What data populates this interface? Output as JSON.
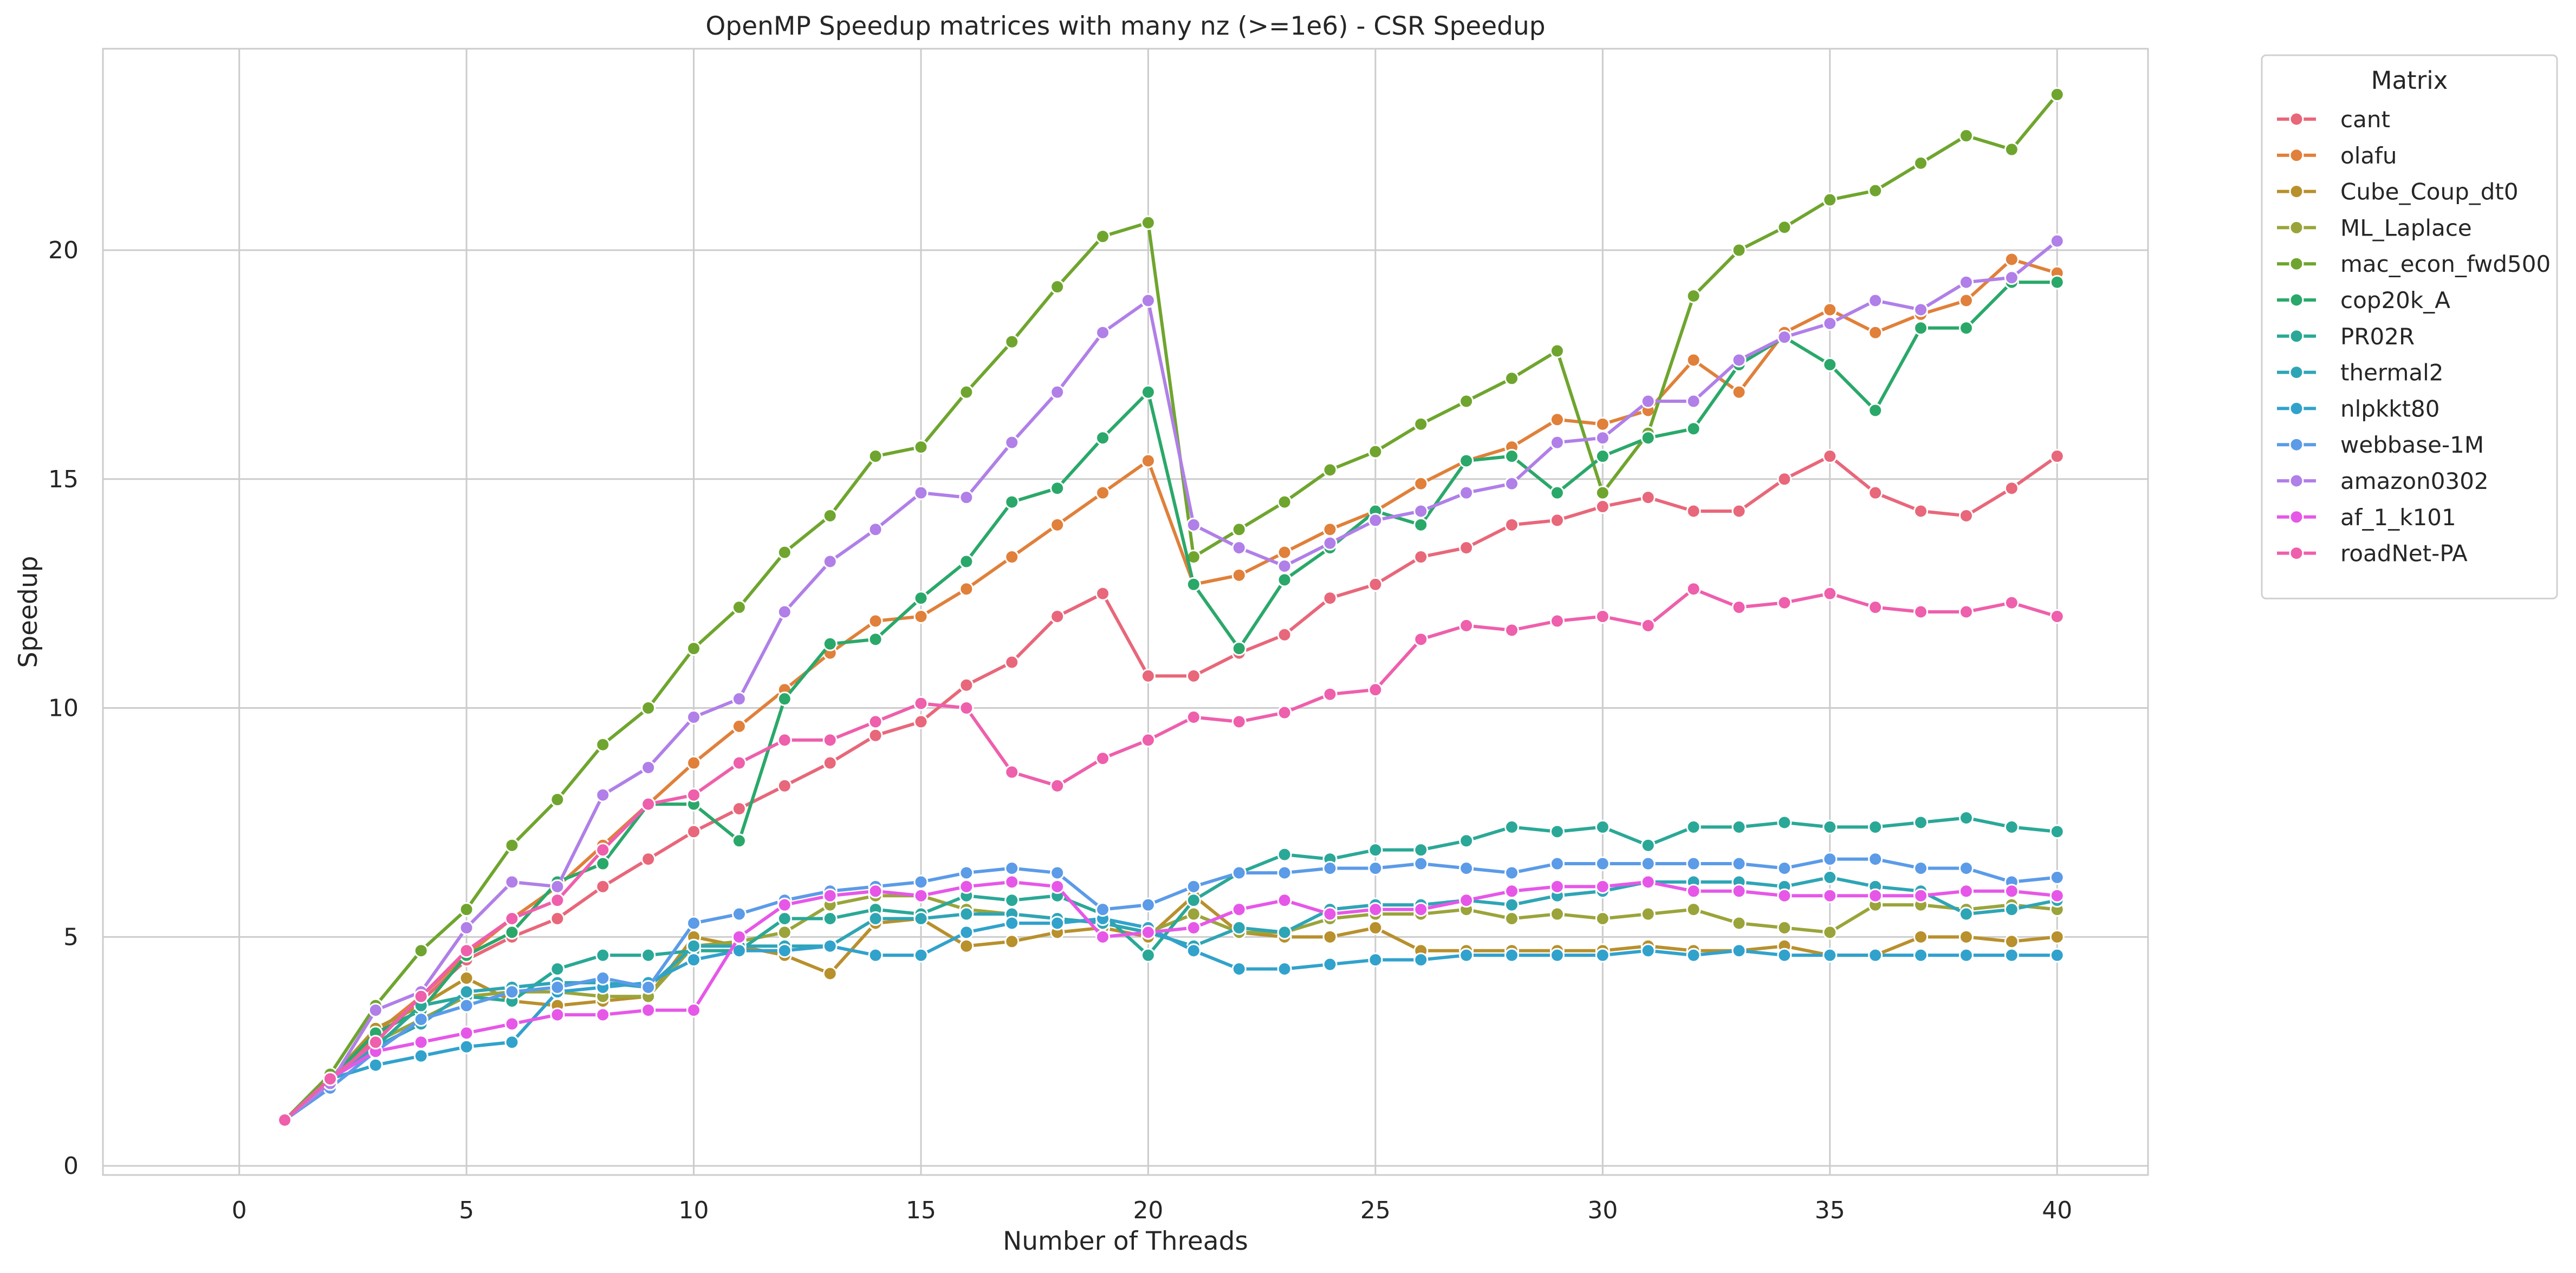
{
  "chart_data": {
    "type": "line",
    "title": "OpenMP Speedup matrices with many nz (>=1e6) - CSR Speedup",
    "xlabel": "Number of Threads",
    "ylabel": "Speedup",
    "xlim": [
      -3,
      42
    ],
    "ylim": [
      -0.2,
      24.4
    ],
    "xticks": [
      0,
      5,
      10,
      15,
      20,
      25,
      30,
      35,
      40
    ],
    "yticks": [
      0,
      5,
      10,
      15,
      20
    ],
    "grid": true,
    "legend": {
      "title": "Matrix",
      "placement": "outside-right"
    },
    "x": [
      1,
      2,
      3,
      4,
      5,
      6,
      7,
      8,
      9,
      10,
      11,
      12,
      13,
      14,
      15,
      16,
      17,
      18,
      19,
      20,
      21,
      22,
      23,
      24,
      25,
      26,
      27,
      28,
      29,
      30,
      31,
      32,
      33,
      34,
      35,
      36,
      37,
      38,
      39,
      40
    ],
    "series": [
      {
        "name": "cant",
        "color": "#e8677a",
        "values": [
          1,
          1.9,
          2.8,
          3.6,
          4.5,
          5.0,
          5.4,
          6.1,
          6.7,
          7.3,
          7.8,
          8.3,
          8.8,
          9.4,
          9.7,
          10.5,
          11.0,
          12.0,
          12.5,
          10.7,
          10.7,
          11.2,
          11.6,
          12.4,
          12.7,
          13.3,
          13.5,
          14.0,
          14.1,
          14.4,
          14.6,
          14.3,
          14.3,
          15.0,
          15.5,
          14.7,
          14.3,
          14.2,
          14.8,
          15.5
        ]
      },
      {
        "name": "olafu",
        "color": "#e0803a",
        "values": [
          1,
          1.9,
          2.9,
          3.7,
          4.6,
          5.4,
          6.1,
          7.0,
          7.9,
          8.8,
          9.6,
          10.4,
          11.2,
          11.9,
          12.0,
          12.6,
          13.3,
          14.0,
          14.7,
          15.4,
          12.7,
          12.9,
          13.4,
          13.9,
          14.3,
          14.9,
          15.4,
          15.7,
          16.3,
          16.2,
          16.5,
          17.6,
          16.9,
          18.2,
          18.7,
          18.2,
          18.6,
          18.9,
          19.8,
          19.5
        ]
      },
      {
        "name": "Cube_Coup_dt0",
        "color": "#b8902c",
        "values": [
          1,
          1.9,
          3.0,
          3.5,
          4.1,
          3.6,
          3.5,
          3.6,
          3.7,
          5.0,
          4.8,
          4.6,
          4.2,
          5.3,
          5.4,
          4.8,
          4.9,
          5.1,
          5.2,
          5.0,
          5.9,
          5.1,
          5.0,
          5.0,
          5.2,
          4.7,
          4.7,
          4.7,
          4.7,
          4.7,
          4.8,
          4.7,
          4.7,
          4.8,
          4.6,
          4.6,
          5.0,
          5.0,
          4.9,
          5.0
        ]
      },
      {
        "name": "ML_Laplace",
        "color": "#9aa43a",
        "values": [
          1,
          1.9,
          2.7,
          3.2,
          3.7,
          3.8,
          3.8,
          3.7,
          3.7,
          4.8,
          4.9,
          5.1,
          5.7,
          5.9,
          5.9,
          5.6,
          5.5,
          5.4,
          5.3,
          5.1,
          5.5,
          5.1,
          5.1,
          5.4,
          5.5,
          5.5,
          5.6,
          5.4,
          5.5,
          5.4,
          5.5,
          5.6,
          5.3,
          5.2,
          5.1,
          5.7,
          5.7,
          5.6,
          5.7,
          5.6
        ]
      },
      {
        "name": "mac_econ_fwd500",
        "color": "#6fa52e",
        "values": [
          1,
          2.0,
          3.5,
          4.7,
          5.6,
          7.0,
          8.0,
          9.2,
          10.0,
          11.3,
          12.2,
          13.4,
          14.2,
          15.5,
          15.7,
          16.9,
          18.0,
          19.2,
          20.3,
          20.6,
          13.3,
          13.9,
          14.5,
          15.2,
          15.6,
          16.2,
          16.7,
          17.2,
          17.8,
          14.7,
          16.0,
          19.0,
          20.0,
          20.5,
          21.1,
          21.3,
          21.9,
          22.5,
          22.2,
          23.4
        ]
      },
      {
        "name": "cop20k_A",
        "color": "#2aa86a",
        "values": [
          1,
          1.9,
          2.9,
          3.4,
          4.6,
          5.1,
          6.2,
          6.6,
          7.9,
          7.9,
          7.1,
          10.2,
          11.4,
          11.5,
          12.4,
          13.2,
          14.5,
          14.8,
          15.9,
          16.9,
          12.7,
          11.3,
          12.8,
          13.5,
          14.3,
          14.0,
          15.4,
          15.5,
          14.7,
          15.5,
          15.9,
          16.1,
          17.5,
          18.1,
          17.5,
          16.5,
          18.3,
          18.3,
          19.3,
          19.3
        ]
      },
      {
        "name": "PR02R",
        "color": "#2aa897",
        "values": [
          1,
          1.9,
          2.6,
          3.5,
          3.7,
          3.6,
          4.3,
          4.6,
          4.6,
          4.7,
          4.7,
          5.4,
          5.4,
          5.6,
          5.5,
          5.9,
          5.8,
          5.9,
          5.5,
          4.6,
          5.8,
          6.4,
          6.8,
          6.7,
          6.9,
          6.9,
          7.1,
          7.4,
          7.3,
          7.4,
          7.0,
          7.4,
          7.4,
          7.5,
          7.4,
          7.4,
          7.5,
          7.6,
          7.4,
          7.3
        ]
      },
      {
        "name": "thermal2",
        "color": "#2ea5b5",
        "values": [
          1,
          1.9,
          2.6,
          3.1,
          3.8,
          3.9,
          4.0,
          4.0,
          3.9,
          4.8,
          4.8,
          4.8,
          4.8,
          5.4,
          5.4,
          5.5,
          5.5,
          5.4,
          5.3,
          5.1,
          4.8,
          5.2,
          5.1,
          5.6,
          5.7,
          5.7,
          5.8,
          5.7,
          5.9,
          6.0,
          6.2,
          6.2,
          6.2,
          6.1,
          6.3,
          6.1,
          6.0,
          5.5,
          5.6,
          5.8
        ]
      },
      {
        "name": "nlpkkt80",
        "color": "#31a2cc",
        "values": [
          1,
          1.9,
          2.2,
          2.4,
          2.6,
          2.7,
          3.8,
          3.9,
          4.0,
          4.5,
          4.7,
          4.7,
          4.8,
          4.6,
          4.6,
          5.1,
          5.3,
          5.3,
          5.4,
          5.2,
          4.7,
          4.3,
          4.3,
          4.4,
          4.5,
          4.5,
          4.6,
          4.6,
          4.6,
          4.6,
          4.7,
          4.6,
          4.7,
          4.6,
          4.6,
          4.6,
          4.6,
          4.6,
          4.6,
          4.6
        ]
      },
      {
        "name": "webbase-1M",
        "color": "#5b9be8",
        "values": [
          1,
          1.7,
          2.5,
          3.2,
          3.5,
          3.8,
          3.9,
          4.1,
          3.9,
          5.3,
          5.5,
          5.8,
          6.0,
          6.1,
          6.2,
          6.4,
          6.5,
          6.4,
          5.6,
          5.7,
          6.1,
          6.4,
          6.4,
          6.5,
          6.5,
          6.6,
          6.5,
          6.4,
          6.6,
          6.6,
          6.6,
          6.6,
          6.6,
          6.5,
          6.7,
          6.7,
          6.5,
          6.5,
          6.2,
          6.3
        ]
      },
      {
        "name": "amazon0302",
        "color": "#b07fe8",
        "values": [
          1,
          1.8,
          3.4,
          3.8,
          5.2,
          6.2,
          6.1,
          8.1,
          8.7,
          9.8,
          10.2,
          12.1,
          13.2,
          13.9,
          14.7,
          14.6,
          15.8,
          16.9,
          18.2,
          18.9,
          14.0,
          13.5,
          13.1,
          13.6,
          14.1,
          14.3,
          14.7,
          14.9,
          15.8,
          15.9,
          16.7,
          16.7,
          17.6,
          18.1,
          18.4,
          18.9,
          18.7,
          19.3,
          19.4,
          20.2
        ]
      },
      {
        "name": "af_1_k101",
        "color": "#e657e8",
        "values": [
          1,
          1.9,
          2.5,
          2.7,
          2.9,
          3.1,
          3.3,
          3.3,
          3.4,
          3.4,
          5.0,
          5.7,
          5.9,
          6.0,
          5.9,
          6.1,
          6.2,
          6.1,
          5.0,
          5.1,
          5.2,
          5.6,
          5.8,
          5.5,
          5.6,
          5.6,
          5.8,
          6.0,
          6.1,
          6.1,
          6.2,
          6.0,
          6.0,
          5.9,
          5.9,
          5.9,
          5.9,
          6.0,
          6.0,
          5.9
        ]
      },
      {
        "name": "roadNet-PA",
        "color": "#ee5fac",
        "values": [
          1,
          1.9,
          2.7,
          3.7,
          4.7,
          5.4,
          5.8,
          6.9,
          7.9,
          8.1,
          8.8,
          9.3,
          9.3,
          9.7,
          10.1,
          10.0,
          8.6,
          8.3,
          8.9,
          9.3,
          9.8,
          9.7,
          9.9,
          10.3,
          10.4,
          11.5,
          11.8,
          11.7,
          11.9,
          12.0,
          11.8,
          12.6,
          12.2,
          12.3,
          12.5,
          12.2,
          12.1,
          12.1,
          12.3,
          12.0
        ]
      }
    ]
  }
}
